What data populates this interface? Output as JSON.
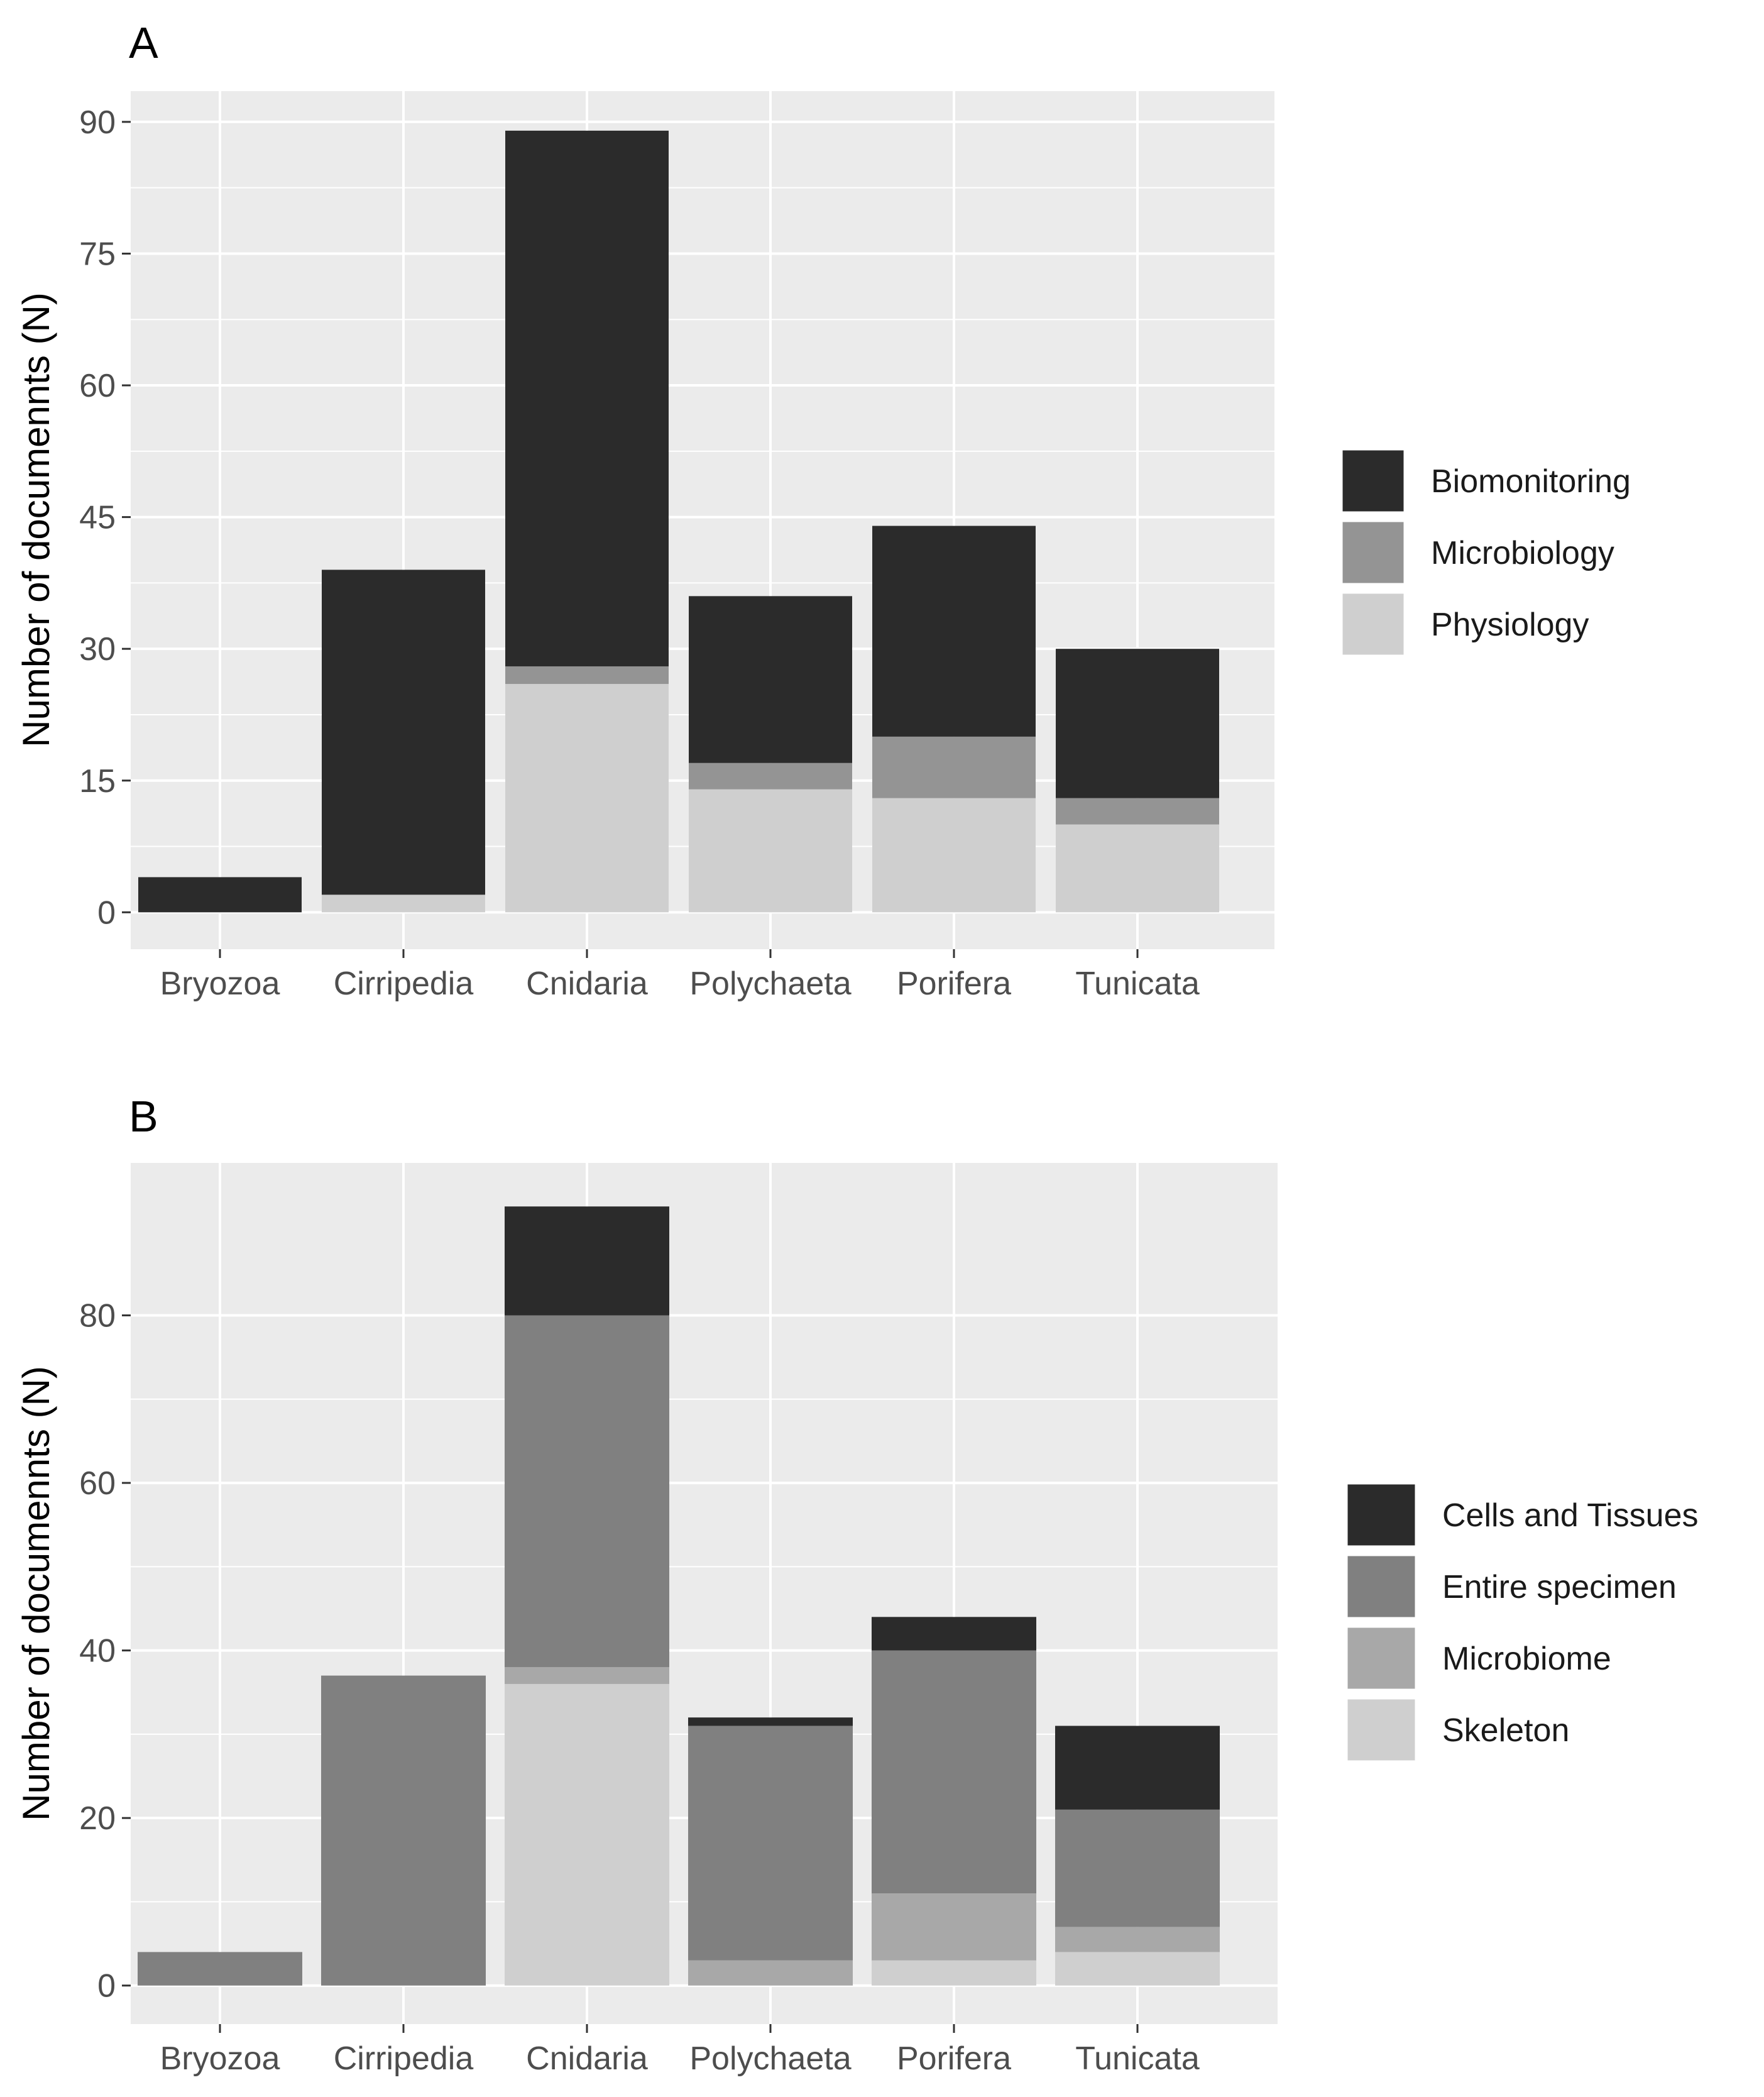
{
  "colors": {
    "panel_bg": "#ebebeb",
    "grid": "#ffffff",
    "tick_text": "#4d4d4d"
  },
  "chart_data": [
    {
      "panel_label": "A",
      "type": "bar",
      "stacked": true,
      "categories": [
        "Bryozoa",
        "Cirripedia",
        "Cnidaria",
        "Polychaeta",
        "Porifera",
        "Tunicata"
      ],
      "series": [
        {
          "name": "Physiology",
          "color": "#cfcfcf",
          "values": [
            0,
            2,
            26,
            14,
            13,
            10
          ]
        },
        {
          "name": "Microbiology",
          "color": "#949494",
          "values": [
            0,
            0,
            2,
            3,
            7,
            3
          ]
        },
        {
          "name": "Biomonitoring",
          "color": "#2b2b2b",
          "values": [
            4,
            37,
            61,
            19,
            24,
            17
          ]
        }
      ],
      "legend_order": [
        "Biomonitoring",
        "Microbiology",
        "Physiology"
      ],
      "legend_position": "right",
      "xlabel": "",
      "ylabel": "Number of documennts (N)",
      "yticks": [
        0,
        15,
        30,
        45,
        60,
        75,
        90
      ],
      "ylim": [
        -4.2,
        93.5
      ],
      "grid": true
    },
    {
      "panel_label": "B",
      "type": "bar",
      "stacked": true,
      "categories": [
        "Bryozoa",
        "Cirripedia",
        "Cnidaria",
        "Polychaeta",
        "Porifera",
        "Tunicata"
      ],
      "series": [
        {
          "name": "Skeleton",
          "color": "#cfcfcf",
          "values": [
            0,
            0,
            36,
            0,
            3,
            4
          ]
        },
        {
          "name": "Microbiome",
          "color": "#a8a8a8",
          "values": [
            0,
            0,
            2,
            3,
            8,
            3
          ]
        },
        {
          "name": "Entire specimen",
          "color": "#808080",
          "values": [
            4,
            37,
            42,
            28,
            29,
            14
          ]
        },
        {
          "name": "Cells and Tissues",
          "color": "#2b2b2b",
          "values": [
            0,
            0,
            13,
            1,
            4,
            10
          ]
        }
      ],
      "legend_order": [
        "Cells and Tissues",
        "Entire specimen",
        "Microbiome",
        "Skeleton"
      ],
      "legend_position": "right",
      "xlabel": "",
      "ylabel": "Number of documennts (N)",
      "yticks": [
        0,
        20,
        40,
        60,
        80
      ],
      "ylim": [
        -4.6,
        98.2
      ],
      "grid": true
    }
  ]
}
